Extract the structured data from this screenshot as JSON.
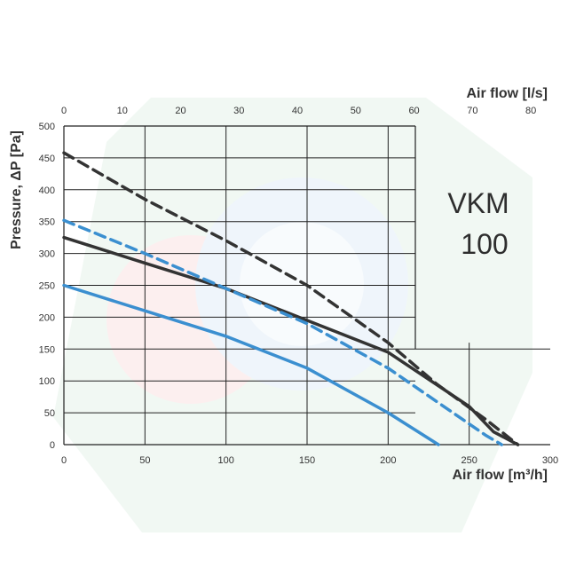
{
  "chart_data": {
    "type": "line",
    "model_label_line1": "VKM",
    "model_label_line2": "100",
    "x_bottom": {
      "label": "Air flow [m³/h]",
      "range": [
        0,
        300
      ],
      "ticks": [
        0,
        50,
        100,
        150,
        200,
        250,
        300
      ]
    },
    "x_top": {
      "label": "Air flow [l/s]",
      "range": [
        0,
        83.33
      ],
      "ticks": [
        0,
        10,
        20,
        30,
        40,
        50,
        60,
        70,
        80
      ]
    },
    "y": {
      "label": "Pressure, ΔP [Pa]",
      "range": [
        0,
        500
      ],
      "ticks": [
        0,
        50,
        100,
        150,
        200,
        250,
        300,
        350,
        400,
        450,
        500
      ]
    },
    "grid": true,
    "colors": {
      "dark": "#333333",
      "blue": "#3b8fd0"
    },
    "series": [
      {
        "color": "#333333",
        "dash": true,
        "points": [
          [
            0,
            458
          ],
          [
            50,
            385
          ],
          [
            100,
            320
          ],
          [
            150,
            250
          ],
          [
            200,
            160
          ],
          [
            230,
            95
          ],
          [
            260,
            40
          ],
          [
            280,
            0
          ]
        ]
      },
      {
        "color": "#333333",
        "dash": false,
        "points": [
          [
            0,
            325
          ],
          [
            50,
            285
          ],
          [
            100,
            245
          ],
          [
            150,
            195
          ],
          [
            200,
            145
          ],
          [
            250,
            60
          ],
          [
            265,
            20
          ],
          [
            280,
            0
          ]
        ]
      },
      {
        "color": "#3b8fd0",
        "dash": true,
        "points": [
          [
            0,
            352
          ],
          [
            50,
            300
          ],
          [
            100,
            245
          ],
          [
            150,
            190
          ],
          [
            200,
            120
          ],
          [
            240,
            50
          ],
          [
            260,
            15
          ],
          [
            270,
            0
          ]
        ]
      },
      {
        "color": "#3b8fd0",
        "dash": false,
        "points": [
          [
            0,
            250
          ],
          [
            50,
            210
          ],
          [
            100,
            170
          ],
          [
            150,
            120
          ],
          [
            200,
            50
          ],
          [
            231,
            0
          ]
        ]
      }
    ]
  }
}
